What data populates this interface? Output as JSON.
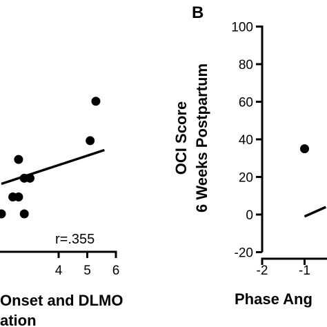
{
  "chart_data": [
    {
      "type": "scatter",
      "panel_label": "",
      "xlabel_lines": [
        "Onset and DLMO",
        "ation"
      ],
      "ylabel_lines": [],
      "xlim": [
        2,
        6
      ],
      "ylim": [
        -20,
        100
      ],
      "x_ticks": [
        {
          "value": 4,
          "label": "4"
        },
        {
          "value": 5,
          "label": "5"
        },
        {
          "value": 6,
          "label": "6"
        }
      ],
      "points": [
        {
          "x": 2.0,
          "y": 0
        },
        {
          "x": 2.4,
          "y": 9
        },
        {
          "x": 2.6,
          "y": 9
        },
        {
          "x": 2.8,
          "y": 0
        },
        {
          "x": 2.6,
          "y": 29
        },
        {
          "x": 2.8,
          "y": 19
        },
        {
          "x": 3.0,
          "y": 19
        },
        {
          "x": 5.1,
          "y": 39
        },
        {
          "x": 5.3,
          "y": 60
        }
      ],
      "trend": {
        "x": [
          2.0,
          5.6
        ],
        "y": [
          16,
          34
        ]
      },
      "annotation": "r=.355"
    },
    {
      "type": "scatter",
      "panel_label": "B",
      "xlabel_lines": [
        "Phase Ang"
      ],
      "ylabel_lines": [
        "OCI Score",
        "6 Weeks Postpartum"
      ],
      "xlim": [
        -2,
        0.4
      ],
      "ylim": [
        -20,
        100
      ],
      "x_ticks": [
        {
          "value": -2,
          "label": "-2"
        },
        {
          "value": -1,
          "label": "-1"
        },
        {
          "value": 0,
          "label": "0"
        }
      ],
      "y_ticks": [
        {
          "value": -20,
          "label": "-20"
        },
        {
          "value": 0,
          "label": "0"
        },
        {
          "value": 20,
          "label": "20"
        },
        {
          "value": 40,
          "label": "40"
        },
        {
          "value": 60,
          "label": "60"
        },
        {
          "value": 80,
          "label": "80"
        },
        {
          "value": 100,
          "label": "100"
        }
      ],
      "points": [
        {
          "x": -1.0,
          "y": 35
        }
      ],
      "trend": {
        "x": [
          -1.0,
          -0.5
        ],
        "y": [
          -1,
          4
        ]
      },
      "annotation": ""
    }
  ]
}
